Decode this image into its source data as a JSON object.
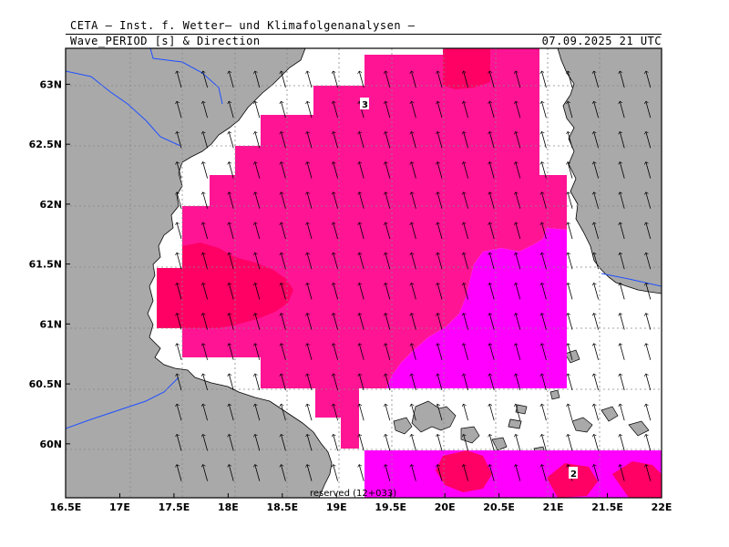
{
  "header": {
    "line1": "CETA — Inst. f. Wetter— und Klimafolgenanalysen —",
    "line2": "Wave_PERIOD [s] & Direction",
    "datetime": "07.09.2025 21 UTC"
  },
  "map": {
    "lon_range": [
      16.5,
      22.0
    ],
    "lat_range": [
      59.55,
      63.3
    ],
    "lon_ticks": [
      "16.5E",
      "17E",
      "17.5E",
      "18E",
      "18.5E",
      "19E",
      "19.5E",
      "20E",
      "20.5E",
      "21E",
      "21.5E",
      "22E"
    ],
    "lat_ticks": [
      "60N",
      "60.5N",
      "61N",
      "61.5N",
      "62N",
      "62.5N",
      "63N"
    ],
    "grid": true,
    "contour_labels": [
      "3",
      "2"
    ],
    "footer_note": "reserved (12+033)",
    "wave_direction": "arrows pointing north-northwest",
    "colors": {
      "land": "#a9a9a9",
      "sea_white": "#ffffff",
      "period_3_pink": "#ff1494",
      "period_3_red": "#ff0064",
      "period_2_magenta": "#ff00ff",
      "border_blue": "#2050ff"
    }
  }
}
